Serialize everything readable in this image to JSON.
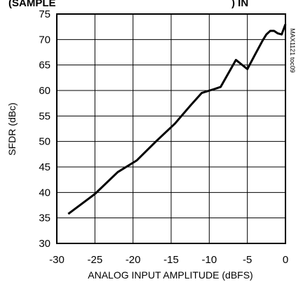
{
  "chart_data": {
    "type": "line",
    "title_fragment_left": "(SAMPLE",
    "title_fragment_right": ") IN",
    "side_note": "MAX1121 toc09",
    "xlabel": "ANALOG INPUT AMPLITUDE (dBFS)",
    "ylabel": "SFDR (dBc)",
    "xlim": [
      -30,
      0
    ],
    "ylim": [
      30,
      75
    ],
    "xticks": [
      -30,
      -25,
      -20,
      -15,
      -10,
      -5,
      0
    ],
    "yticks": [
      30,
      35,
      40,
      45,
      50,
      55,
      60,
      65,
      70,
      75
    ],
    "grid": true,
    "series": [
      {
        "color": "#000000",
        "x": [
          -28.5,
          -25,
          -22,
          -19.5,
          -17,
          -14.5,
          -12.5,
          -11,
          -9.5,
          -8.5,
          -6.5,
          -5,
          -4,
          -3,
          -2.5,
          -2,
          -1.5,
          -1,
          -0.5,
          0
        ],
        "y": [
          35.8,
          39.7,
          44,
          46.3,
          50,
          53.5,
          57,
          59.5,
          60.2,
          60.7,
          66,
          64.2,
          67,
          69.8,
          71,
          71.7,
          71.7,
          71.2,
          71,
          73
        ]
      }
    ]
  }
}
